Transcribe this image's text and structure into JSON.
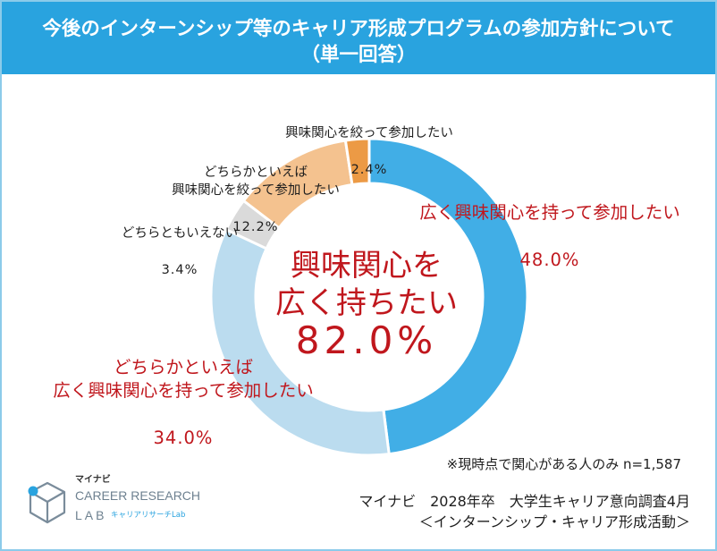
{
  "theme": {
    "header_bg": "#29A3DF",
    "header_text": "#FFFFFF",
    "frame": "#8CCBEA",
    "highlight_text": "#C0171D",
    "body_text": "#1E1E1E"
  },
  "chart_data": {
    "type": "pie",
    "donut": true,
    "title": "今後のインターンシップ等のキャリア形成プログラムの参加方針について",
    "subtitle": "（単一回答）",
    "categories": [
      "広く興味関心を持って参加したい",
      "どちらかといえば\n広く興味関心を持って参加したい",
      "どちらともいえない",
      "どちらかといえば\n興味関心を絞って参加したい",
      "興味関心を絞って参加したい"
    ],
    "values": [
      48.0,
      34.0,
      3.4,
      12.2,
      2.4
    ],
    "value_labels": [
      "48.0%",
      "34.0%",
      "3.4%",
      "12.2%",
      "2.4%"
    ],
    "colors": [
      "#41AEE6",
      "#BBDCEF",
      "#DADADA",
      "#F4C28F",
      "#EC9A45"
    ],
    "label_colors": [
      "#C0171D",
      "#C0171D",
      "#1E1E1E",
      "#1E1E1E",
      "#1E1E1E"
    ],
    "center_annotation": [
      "興味関心を",
      "広く持ちたい",
      "82.0%"
    ],
    "footnote": "※現時点で関心がある人のみ n=1,587"
  },
  "source": {
    "line1": "マイナビ　2028年卒　大学生キャリア意向調査4月",
    "line2": "＜インターンシップ・キャリア形成活動＞"
  },
  "logo": {
    "brand": "マイナビ",
    "name_line1": "CAREER RESEARCH",
    "name_line2": "LAB",
    "tagline": "キャリアリサーチLab",
    "icon": "cube-icon",
    "icon_color": "#7A8C9B",
    "dot_color": "#29A3DF"
  }
}
